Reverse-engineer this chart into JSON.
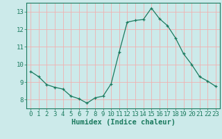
{
  "x": [
    0,
    1,
    2,
    3,
    4,
    5,
    6,
    7,
    8,
    9,
    10,
    11,
    12,
    13,
    14,
    15,
    16,
    17,
    18,
    19,
    20,
    21,
    22,
    23
  ],
  "y": [
    9.6,
    9.3,
    8.85,
    8.7,
    8.6,
    8.2,
    8.05,
    7.8,
    8.1,
    8.2,
    8.9,
    10.7,
    12.4,
    12.5,
    12.55,
    13.2,
    12.6,
    12.2,
    11.5,
    10.6,
    10.0,
    9.3,
    9.05,
    8.75
  ],
  "line_color": "#1a7a5e",
  "marker": "+",
  "bg_color": "#cceaea",
  "grid_color": "#f0b0b0",
  "axis_color": "#1a7a5e",
  "xlabel": "Humidex (Indice chaleur)",
  "xlim": [
    -0.5,
    23.5
  ],
  "ylim": [
    7.5,
    13.5
  ],
  "yticks": [
    8,
    9,
    10,
    11,
    12,
    13
  ],
  "xticks": [
    0,
    1,
    2,
    3,
    4,
    5,
    6,
    7,
    8,
    9,
    10,
    11,
    12,
    13,
    14,
    15,
    16,
    17,
    18,
    19,
    20,
    21,
    22,
    23
  ],
  "label_fontsize": 7.5,
  "tick_fontsize": 6.5
}
